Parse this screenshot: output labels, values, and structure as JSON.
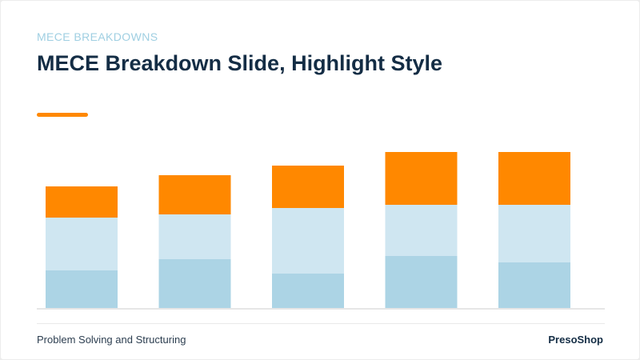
{
  "header": {
    "eyebrow": "MECE BREAKDOWNS",
    "title": "MECE Breakdown Slide, Highlight Style"
  },
  "footer": {
    "left_text": "Problem Solving and Structuring",
    "brand": "PresoShop"
  },
  "colors": {
    "base": "#acd4e5",
    "middle": "#cfe6f1",
    "highlight": "#ff8800",
    "baseline": "#e6e6e6",
    "accent": "#ff8800"
  },
  "chart_data": {
    "type": "bar",
    "stacked": true,
    "categories": [
      "",
      "",
      "",
      "",
      ""
    ],
    "series": [
      {
        "values": [
          47,
          61,
          43,
          65,
          57
        ]
      },
      {
        "values": [
          66,
          56,
          82,
          64,
          72
        ]
      },
      {
        "values": [
          39,
          49,
          53,
          66,
          66
        ]
      }
    ],
    "ylim": [
      0,
      200
    ],
    "grid": false,
    "legend": "none"
  }
}
